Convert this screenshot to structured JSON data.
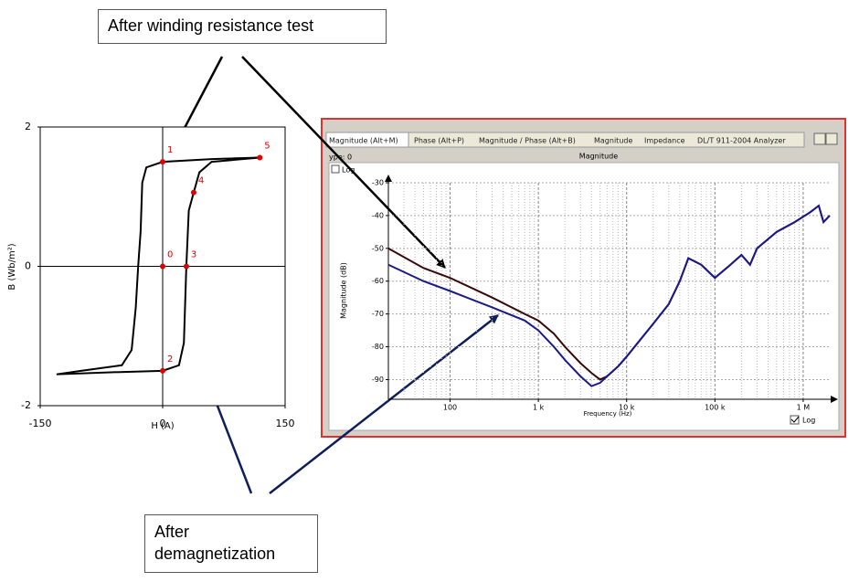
{
  "callouts": [
    "After winding resistance test",
    "After demagnetization"
  ],
  "window": {
    "tabs": [
      "Magnitude (Alt+M)",
      "Phase (Alt+P)",
      "Magnitude / Phase (Alt+B)",
      "Magnitude",
      "Impedance",
      "DL/T 911-2004 Analyzer"
    ],
    "type_label": "ype: 0",
    "log_top": "Log",
    "log_bottom": "Log"
  },
  "chart_data": [
    {
      "type": "line",
      "xlabel": "H (A)",
      "ylabel": "B (Wb/m²)",
      "x": [
        119,
        60,
        0,
        -20,
        -25,
        -27,
        -30,
        -33,
        -38,
        -50,
        -100,
        -130,
        -60,
        0,
        20,
        26,
        29,
        32,
        38,
        45,
        60,
        119
      ],
      "values": [
        1.56,
        1.54,
        1.5,
        1.42,
        1.2,
        0.5,
        0,
        -0.6,
        -1.2,
        -1.42,
        -1.5,
        -1.55,
        -1.52,
        -1.5,
        -1.42,
        -1.1,
        0,
        0.8,
        1.06,
        1.35,
        1.5,
        1.56
      ],
      "color": "#000000",
      "points": {
        "labels": [
          "0",
          "1",
          "2",
          "3",
          "4",
          "5"
        ],
        "x": [
          0,
          0,
          0,
          29,
          38,
          119
        ],
        "y": [
          0,
          1.5,
          -1.5,
          0,
          1.06,
          1.56
        ],
        "color": "#e00000"
      },
      "xlim": [
        -150,
        150
      ],
      "xticks": [
        -150,
        0,
        150
      ],
      "ylim": [
        -2,
        2
      ],
      "yticks": [
        2,
        0,
        -2
      ]
    },
    {
      "type": "line",
      "title": "Magnitude",
      "xlabel": "Frequency (Hz)",
      "ylabel": "Magnitude (dB)",
      "log_x": true,
      "grid": true,
      "x": [
        20,
        50,
        100,
        300,
        700,
        1000,
        1500,
        2000,
        3000,
        4000,
        5000,
        6000,
        8000,
        10000,
        20000,
        30000,
        40000,
        50000,
        70000,
        100000,
        150000,
        200000,
        250000,
        300000,
        500000,
        800000,
        1200000,
        1500000,
        1700000,
        2000000
      ],
      "series": [
        {
          "color": "#3a0a0a",
          "values": [
            -50,
            -56,
            -59,
            -65,
            -70,
            -72,
            -76,
            -80,
            -85,
            -88,
            -90,
            -89,
            -86,
            -83,
            -73,
            -67,
            -60,
            -53,
            -55,
            -59,
            -55,
            -52,
            -55,
            -50,
            -45,
            -42,
            -39,
            -37,
            -42,
            -40
          ]
        },
        {
          "color": "#1a1a8c",
          "values": [
            -55,
            -60,
            -63,
            -68,
            -72,
            -75,
            -80,
            -84,
            -89,
            -92,
            -91,
            -89,
            -86,
            -83,
            -73,
            -67,
            -60,
            -53,
            -55,
            -59,
            -55,
            -52,
            -55,
            -50,
            -45,
            -42,
            -39,
            -37,
            -42,
            -40
          ]
        }
      ],
      "xlim": [
        20,
        2000000
      ],
      "xticks": [
        100,
        {
          "value": 1000,
          "label": "1 k"
        },
        {
          "value": 10000,
          "label": "10 k"
        },
        {
          "value": 100000,
          "label": "100 k"
        },
        {
          "value": 1000000,
          "label": "1 M"
        }
      ],
      "ylim": [
        -96,
        -30
      ],
      "yticks": [
        -30,
        -40,
        -50,
        -60,
        -70,
        -80,
        -90
      ]
    }
  ]
}
